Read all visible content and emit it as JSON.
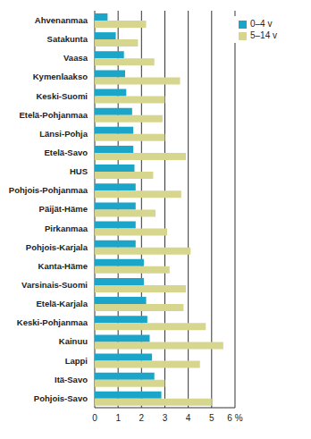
{
  "chart_data": {
    "type": "bar",
    "orientation": "horizontal",
    "categories": [
      "Ahvenanmaa",
      "Satakunta",
      "Vaasa",
      "Kymenlaakso",
      "Keski-Suomi",
      "Etelä-Pohjanmaa",
      "Länsi-Pohja",
      "Etelä-Savo",
      "HUS",
      "Pohjois-Pohjanmaa",
      "Päijät-Häme",
      "Pirkanmaa",
      "Pohjois-Karjala",
      "Kanta-Häme",
      "Varsinais-Suomi",
      "Etelä-Karjala",
      "Keski-Pohjanmaa",
      "Kainuu",
      "Lappi",
      "Itä-Savo",
      "Pohjois-Savo"
    ],
    "series": [
      {
        "name": "0–4 v",
        "color": "#1ba6c9",
        "values": [
          0.55,
          0.9,
          1.25,
          1.3,
          1.35,
          1.6,
          1.65,
          1.65,
          1.7,
          1.75,
          1.75,
          1.75,
          1.75,
          2.1,
          2.1,
          2.2,
          2.25,
          2.35,
          2.45,
          2.55,
          2.85
        ]
      },
      {
        "name": "5–14 v",
        "color": "#d6d68f",
        "values": [
          2.2,
          1.85,
          2.55,
          3.65,
          3.0,
          2.9,
          3.0,
          3.9,
          2.5,
          3.7,
          2.6,
          3.1,
          4.1,
          3.2,
          3.9,
          3.8,
          4.75,
          5.5,
          4.5,
          3.0,
          5.0
        ]
      }
    ],
    "xlim": [
      0,
      6
    ],
    "xticks": [
      0,
      1,
      2,
      3,
      4,
      5,
      {
        "value": 6,
        "label": "6 %"
      }
    ],
    "grid": true,
    "legend": "top-right"
  }
}
